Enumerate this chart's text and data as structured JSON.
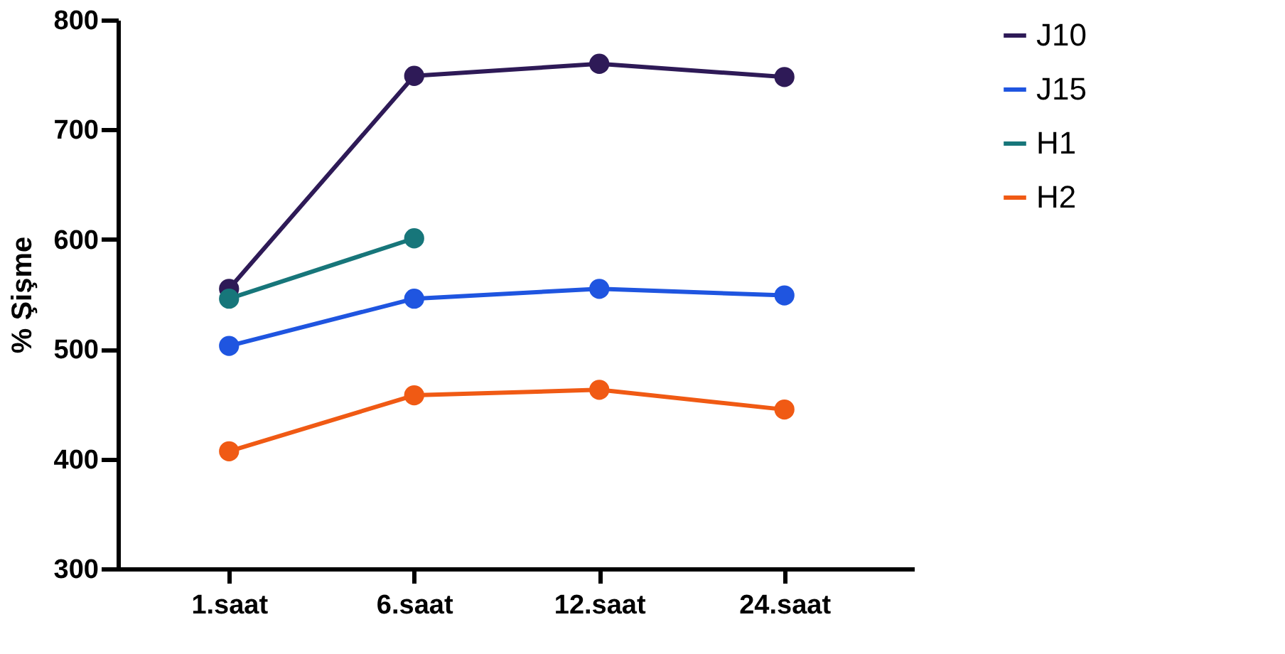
{
  "chart_data": {
    "type": "line",
    "ylabel": "% Şişme",
    "categories": [
      "1.saat",
      "6.saat",
      "12.saat",
      "24.saat"
    ],
    "ylim": [
      300,
      800
    ],
    "yticks": [
      300,
      400,
      500,
      600,
      700,
      800
    ],
    "grid": false,
    "legend": "right",
    "marker": "circle",
    "line_style": "solid",
    "series": [
      {
        "name": "J10",
        "color": "#2e1a57",
        "values": [
          555,
          749,
          760,
          748
        ]
      },
      {
        "name": "J15",
        "color": "#1f55e0",
        "values": [
          503,
          546,
          555,
          549
        ]
      },
      {
        "name": "H1",
        "color": "#17767a",
        "values": [
          546,
          601,
          null,
          null
        ]
      },
      {
        "name": "H2",
        "color": "#f05a14",
        "values": [
          407,
          458,
          463,
          445
        ]
      }
    ]
  }
}
